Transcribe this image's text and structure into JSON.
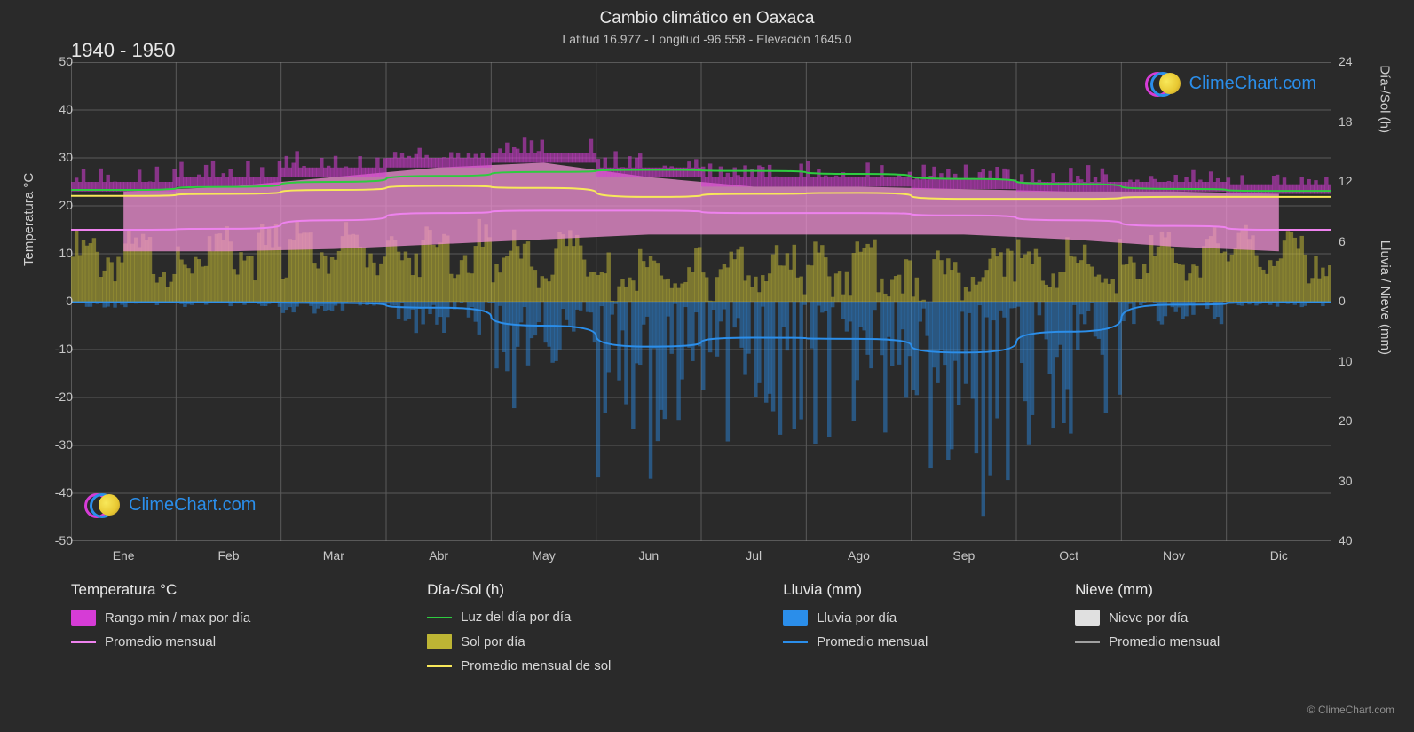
{
  "title": "Cambio climático en Oaxaca",
  "subtitle": "Latitud 16.977 - Longitud -96.558 - Elevación 1645.0",
  "period": "1940 - 1950",
  "axes": {
    "left_label": "Temperatura °C",
    "right_top_label": "Día-/Sol (h)",
    "right_bot_label": "Lluvia / Nieve (mm)",
    "y_left_min": -50,
    "y_left_max": 50,
    "y_left_step": 10,
    "y_left_ticks": [
      50,
      40,
      30,
      20,
      10,
      0,
      -10,
      -20,
      -30,
      -40,
      -50
    ],
    "y_right_top_ticks": [
      24,
      18,
      12,
      6,
      0
    ],
    "y_right_bot_ticks": [
      0,
      10,
      20,
      30,
      40
    ],
    "months": [
      "Ene",
      "Feb",
      "Mar",
      "Abr",
      "May",
      "Jun",
      "Jul",
      "Ago",
      "Sep",
      "Oct",
      "Nov",
      "Dic"
    ]
  },
  "colors": {
    "background": "#2a2a2a",
    "grid": "#5a5a5a",
    "axis": "#888888",
    "temp_range_dark": "#d63cd6",
    "temp_range_light": "#f090d4",
    "temp_mean_line": "#ee82ee",
    "daylight_line": "#2ecc40",
    "sun_area": "#bdb534",
    "sun_mean_line": "#f8e85a",
    "rain_bar": "#2b8eea",
    "rain_mean_line": "#2b8eea",
    "snow_bar": "#e0e0e0",
    "snow_mean_line": "#a0a0a0",
    "watermark_text": "#2b8eea"
  },
  "series": {
    "daylight_h": [
      11.2,
      11.5,
      12.0,
      12.6,
      13.0,
      13.2,
      13.1,
      12.8,
      12.3,
      11.8,
      11.3,
      11.1
    ],
    "sun_mean_h": [
      10.6,
      10.8,
      11.2,
      11.6,
      11.4,
      10.5,
      10.8,
      10.9,
      10.3,
      10.3,
      10.5,
      10.5
    ],
    "sun_days_h": [
      6.0,
      6.5,
      6.7,
      6.8,
      5.8,
      4.0,
      4.5,
      4.8,
      4.0,
      5.0,
      6.0,
      6.2
    ],
    "temp_mean_c": [
      15.0,
      15.2,
      17.0,
      18.5,
      19.0,
      19.0,
      18.5,
      18.5,
      18.0,
      17.0,
      15.8,
      15.0
    ],
    "temp_max_c": [
      25.0,
      26.0,
      28.0,
      30.0,
      31.0,
      28.0,
      26.0,
      26.0,
      25.5,
      25.0,
      25.0,
      24.5
    ],
    "temp_min_c": [
      8.5,
      8.5,
      9.0,
      10.0,
      11.0,
      12.0,
      12.0,
      12.0,
      12.0,
      11.0,
      9.5,
      8.5
    ],
    "rain_mean_mm": [
      0.1,
      0.1,
      0.2,
      1.0,
      4.0,
      7.5,
      6.0,
      6.2,
      8.5,
      5.0,
      0.5,
      0.1
    ],
    "rain_day_max_mm": [
      1,
      1,
      2,
      6,
      18,
      30,
      24,
      26,
      38,
      24,
      4,
      1
    ]
  },
  "legend": {
    "temp_header": "Temperatura °C",
    "temp_range": "Rango min / max por día",
    "temp_mean": "Promedio mensual",
    "daysun_header": "Día-/Sol (h)",
    "daylight": "Luz del día por día",
    "sun_per_day": "Sol por día",
    "sun_mean": "Promedio mensual de sol",
    "rain_header": "Lluvia (mm)",
    "rain_day": "Lluvia por día",
    "rain_mean": "Promedio mensual",
    "snow_header": "Nieve (mm)",
    "snow_day": "Nieve por día",
    "snow_mean": "Promedio mensual"
  },
  "watermark_text": "ClimeChart.com",
  "copyright": "© ClimeChart.com"
}
